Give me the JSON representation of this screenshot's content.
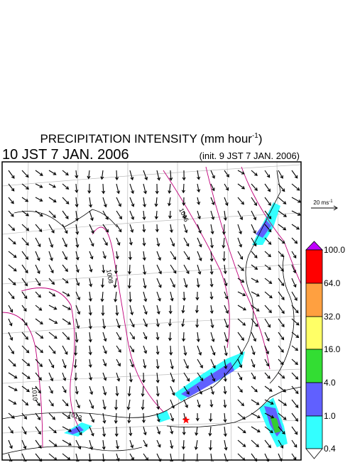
{
  "header": {
    "title": "PRECIPITATION INTENSITY (mm hour",
    "title_superscript": "-1",
    "title_close": ")",
    "valid_time": "10 JST 7 JAN. 2006",
    "init_time": "(init. 9 JST 7 JAN. 2006)"
  },
  "wind_scale": {
    "label": "20 ms",
    "label_superscript": "-1"
  },
  "colorbar": {
    "levels": [
      "100.0",
      "64.0",
      "32.0",
      "16.0",
      "4.0",
      "1.0",
      "0.4"
    ]
  },
  "isobar_labels": [
    "1006",
    "1008",
    "1010",
    "1012"
  ]
}
